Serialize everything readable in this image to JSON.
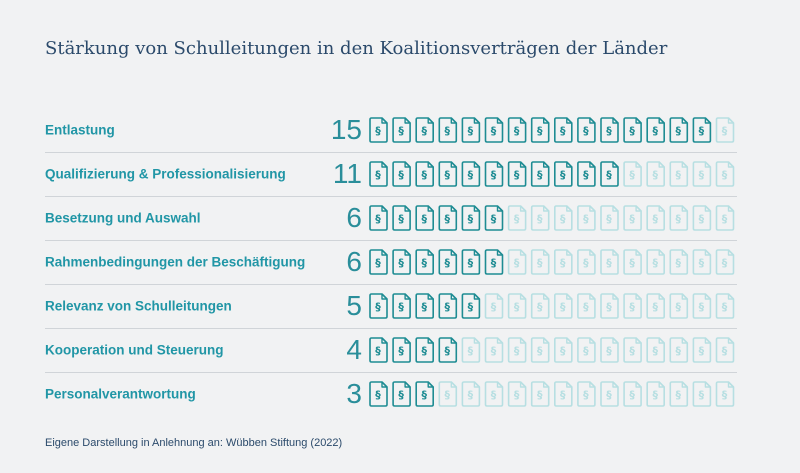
{
  "title": "Stärkung von Schulleitungen in den Koalitionsverträgen der Länder",
  "source": "Eigene Darstellung in Anlehnung an: Wübben Stiftung (2022)",
  "colors": {
    "active": "#1e8c93",
    "inactive": "#b7dfe2",
    "label": "#2196a6",
    "value": "#2a8e9a",
    "title": "#2b4a6b"
  },
  "icon_symbol": "§",
  "chart_data": {
    "type": "bar",
    "title": "Stärkung von Schulleitungen in den Koalitionsverträgen der Länder",
    "total_per_row": 16,
    "categories": [
      "Entlastung",
      "Qualifizierung & Professionalisierung",
      "Besetzung und Auswahl",
      "Rahmenbedingungen der Beschäftigung",
      "Relevanz von Schulleitungen",
      "Kooperation und Steuerung",
      "Personalverantwortung"
    ],
    "values": [
      15,
      11,
      6,
      6,
      5,
      4,
      3
    ],
    "value_labels": [
      "15",
      "11",
      "6",
      "6",
      "5",
      "4",
      "3"
    ],
    "icon": "document-paragraph-icon"
  }
}
